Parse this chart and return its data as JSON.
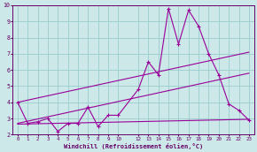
{
  "background_color": "#cce8e8",
  "grid_color": "#99cccc",
  "line_color": "#990099",
  "spine_color": "#660066",
  "xlabel": "Windchill (Refroidissement éolien,°C)",
  "xlim": [
    -0.5,
    23.5
  ],
  "ylim": [
    2,
    10
  ],
  "yticks": [
    2,
    3,
    4,
    5,
    6,
    7,
    8,
    9,
    10
  ],
  "xtick_positions": [
    0,
    1,
    2,
    3,
    4,
    5,
    6,
    7,
    8,
    9,
    10,
    12,
    13,
    14,
    15,
    16,
    17,
    18,
    19,
    20,
    21,
    22,
    23
  ],
  "xtick_labels": [
    "0",
    "1",
    "2",
    "3",
    "4",
    "5",
    "6",
    "7",
    "8",
    "9",
    "10",
    "12",
    "13",
    "14",
    "15",
    "16",
    "17",
    "18",
    "19",
    "20",
    "21",
    "22",
    "23"
  ],
  "data_x": [
    0,
    1,
    2,
    3,
    4,
    5,
    6,
    7,
    8,
    9,
    10,
    12,
    13,
    14,
    15,
    16,
    17,
    18,
    19,
    20,
    21,
    22,
    23
  ],
  "data_y": [
    4.0,
    2.7,
    2.8,
    3.0,
    2.2,
    2.7,
    2.7,
    3.7,
    2.5,
    3.2,
    3.2,
    4.8,
    6.5,
    5.7,
    9.8,
    7.6,
    9.7,
    8.7,
    7.0,
    5.7,
    3.9,
    3.5,
    2.9
  ],
  "trend1_x": [
    0,
    23
  ],
  "trend1_y": [
    2.65,
    2.95
  ],
  "trend2_x": [
    0,
    23
  ],
  "trend2_y": [
    2.7,
    5.8
  ],
  "trend3_x": [
    0,
    23
  ],
  "trend3_y": [
    4.0,
    7.1
  ]
}
